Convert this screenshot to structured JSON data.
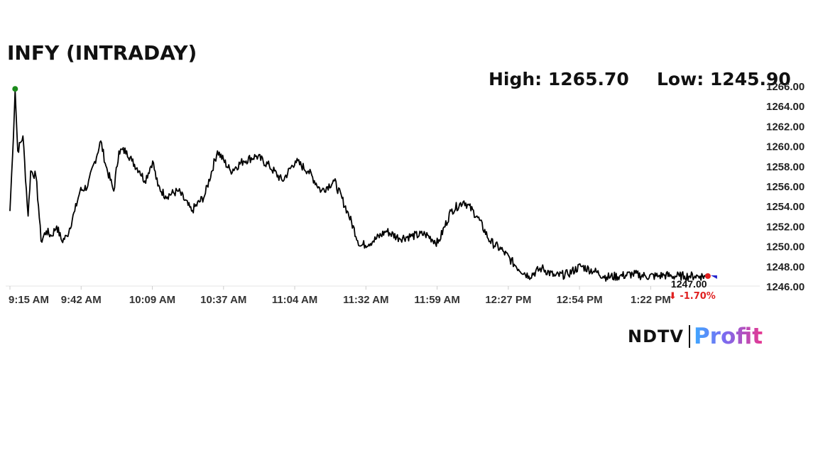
{
  "chart_data": {
    "type": "line",
    "title": "INFY (INTRADAY)",
    "high_label": "High: 1265.70",
    "low_label": "Low: 1245.90",
    "high": 1265.7,
    "low": 1245.9,
    "last_price": "1247.00",
    "change_pct": "-1.70%",
    "change_arrow": "⬇",
    "ylim": [
      1246,
      1266
    ],
    "y_ticks": [
      "1266.00",
      "1264.00",
      "1262.00",
      "1260.00",
      "1258.00",
      "1256.00",
      "1254.00",
      "1252.00",
      "1250.00",
      "1248.00",
      "1246.00"
    ],
    "x_ticks": [
      "9:15 AM",
      "9:42 AM",
      "10:09 AM",
      "10:37 AM",
      "11:04 AM",
      "11:32 AM",
      "11:59 AM",
      "12:27 PM",
      "12:54 PM",
      "1:22 PM"
    ],
    "x_range": [
      "9:15 AM",
      "1:44 PM"
    ],
    "grid": false,
    "colors": {
      "line": "#000000",
      "high_marker": "#1a8a1a",
      "last_marker": "#e02020",
      "change": "#e02020",
      "end_marker": "#2222cc"
    },
    "series": [
      {
        "x_minutes": [
          0,
          1,
          2,
          3,
          5,
          7,
          8,
          10,
          11,
          12,
          14,
          16,
          18,
          20,
          22,
          25,
          27,
          30,
          35,
          37,
          40,
          42,
          45,
          47,
          50,
          52,
          55,
          57,
          60,
          65,
          70,
          75,
          80,
          85,
          90,
          95,
          100,
          105,
          110,
          115,
          120,
          125,
          130,
          135,
          140,
          145,
          150,
          155,
          160,
          165,
          170,
          175,
          180,
          185,
          190,
          195,
          200,
          205,
          210,
          215,
          220,
          225,
          230,
          235,
          240,
          245,
          250,
          252,
          255,
          258,
          260,
          262,
          264,
          266,
          268,
          269
        ],
        "values": [
          1253.5,
          1259.0,
          1265.6,
          1259.5,
          1261.0,
          1253.0,
          1257.5,
          1257.0,
          1254.0,
          1250.5,
          1251.5,
          1251.0,
          1252.0,
          1250.5,
          1251.0,
          1253.5,
          1255.5,
          1256.0,
          1260.5,
          1258.0,
          1255.5,
          1259.5,
          1259.5,
          1258.5,
          1257.5,
          1256.5,
          1258.5,
          1256.0,
          1255.0,
          1255.5,
          1253.5,
          1255.0,
          1259.5,
          1257.5,
          1258.5,
          1259.0,
          1258.0,
          1256.5,
          1258.5,
          1257.5,
          1255.5,
          1256.5,
          1253.5,
          1250.0,
          1250.5,
          1251.5,
          1250.8,
          1251.0,
          1251.2,
          1250.3,
          1253.5,
          1254.5,
          1253.0,
          1250.5,
          1249.5,
          1248.0,
          1247.0,
          1247.8,
          1247.0,
          1247.2,
          1248.0,
          1247.5,
          1246.9,
          1247.0,
          1247.2,
          1247.0,
          1247.0,
          1247.1,
          1247.0,
          1247.0,
          1247.0,
          1247.0,
          1247.0,
          1247.0,
          1247.0,
          1247.0
        ]
      }
    ]
  },
  "brand": {
    "ndtv": "NDTV",
    "profit": "Profit"
  }
}
